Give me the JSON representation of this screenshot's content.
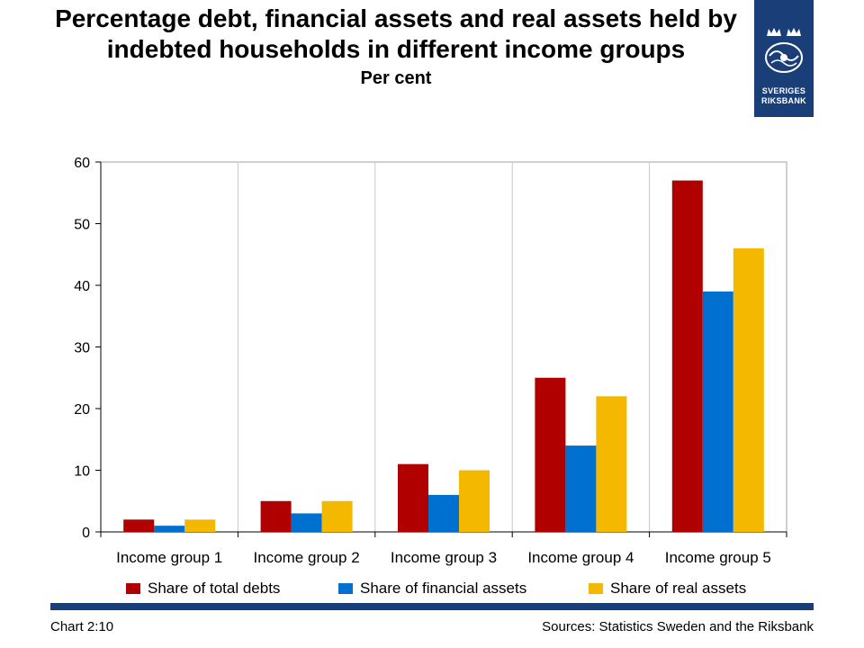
{
  "header": {
    "title": "Percentage debt, financial assets and real assets held by indebted households in different income groups",
    "subtitle": "Per cent"
  },
  "logo": {
    "line1": "SVERIGES",
    "line2": "RIKSBANK",
    "icon": "riksbank-crest-icon",
    "color": "#1a3e78"
  },
  "footer": {
    "left": "Chart 2:10",
    "right": "Sources: Statistics Sweden and the Riksbank",
    "bar_color": "#1a3e78"
  },
  "chart_data": {
    "type": "bar",
    "categories": [
      "Income group 1",
      "Income group 2",
      "Income group 3",
      "Income group 4",
      "Income group 5"
    ],
    "series": [
      {
        "name": "Share of total debts",
        "color": "#b00000",
        "values": [
          2,
          5,
          11,
          25,
          57
        ]
      },
      {
        "name": "Share of financial assets",
        "color": "#0070d0",
        "values": [
          1,
          3,
          6,
          14,
          39
        ]
      },
      {
        "name": "Share of real assets",
        "color": "#f5b800",
        "values": [
          2,
          5,
          10,
          22,
          46
        ]
      }
    ],
    "ylim": [
      0,
      60
    ],
    "yticks": [
      0,
      10,
      20,
      30,
      40,
      50,
      60
    ],
    "grid": "vertical separators between categories",
    "legend": "bottom"
  }
}
